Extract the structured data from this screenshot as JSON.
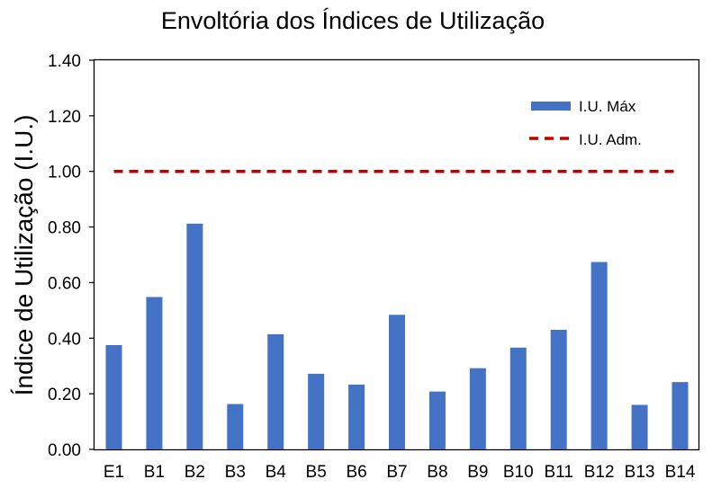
{
  "chart_data": {
    "type": "bar",
    "title": "Envoltória dos Índices de Utilização",
    "xlabel": "",
    "ylabel": "Índice de Utilização (I.U.)",
    "ylim": [
      0,
      1.4
    ],
    "yticks": [
      "0.00",
      "0.20",
      "0.40",
      "0.60",
      "0.80",
      "1.00",
      "1.20",
      "1.40"
    ],
    "categories": [
      "E1",
      "B1",
      "B2",
      "B3",
      "B4",
      "B5",
      "B6",
      "B7",
      "B8",
      "B9",
      "B10",
      "B11",
      "B12",
      "B13",
      "B14"
    ],
    "series": [
      {
        "name": "I.U. Máx",
        "kind": "bar",
        "color": "#4472C4",
        "values": [
          0.375,
          0.548,
          0.812,
          0.163,
          0.414,
          0.272,
          0.233,
          0.484,
          0.208,
          0.292,
          0.366,
          0.43,
          0.674,
          0.16,
          0.242
        ]
      },
      {
        "name": "I.U. Adm.",
        "kind": "line-dashed",
        "color": "#C00000",
        "values": [
          1.0,
          1.0,
          1.0,
          1.0,
          1.0,
          1.0,
          1.0,
          1.0,
          1.0,
          1.0,
          1.0,
          1.0,
          1.0,
          1.0,
          1.0
        ]
      }
    ],
    "grid": false,
    "legend_position": "top-right"
  }
}
